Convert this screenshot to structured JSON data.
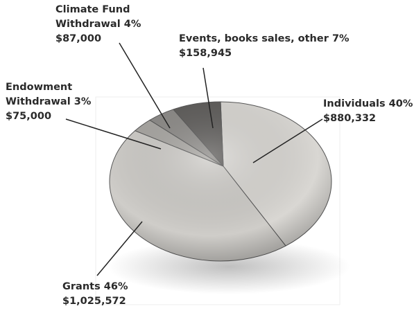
{
  "chart_data": {
    "type": "pie",
    "categories": [
      "Individuals",
      "Grants",
      "Endowment Withdrawal",
      "Climate Fund Withdrawal",
      "Events, books sales, other"
    ],
    "values": [
      40,
      46,
      3,
      4,
      7
    ],
    "value_labels": [
      "40%",
      "46%",
      "3%",
      "4%",
      "7%"
    ],
    "amount_labels": [
      "$880,332",
      "$1,025,572",
      "$75,000",
      "$87,000",
      "$158,945"
    ],
    "colors": [
      "#d9d7d3",
      "#cfcdc9",
      "#a9a7a3",
      "#8d8b88",
      "#5f5d5b"
    ]
  }
}
